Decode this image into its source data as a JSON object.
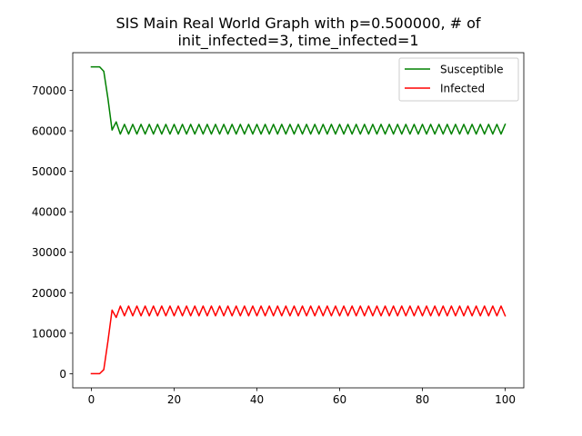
{
  "title_line1": "SIS Main Real World Graph with p=0.500000, # of",
  "title_line2": "init_infected=3, time_infected=1",
  "chart_data": {
    "type": "line",
    "title": "SIS Main Real World Graph with p=0.500000, # of init_infected=3, time_infected=1",
    "xlabel": "",
    "ylabel": "",
    "xlim": [
      -4.5,
      104.5
    ],
    "ylim": [
      -3500,
      79300
    ],
    "xticks": [
      0,
      20,
      40,
      60,
      80,
      100
    ],
    "yticks": [
      0,
      10000,
      20000,
      30000,
      40000,
      50000,
      60000,
      70000
    ],
    "legend": "top-right",
    "grid": false,
    "series": [
      {
        "name": "Susceptible",
        "color": "#008000",
        "x": [
          0,
          1,
          2,
          3,
          4,
          5,
          6,
          7,
          8,
          9,
          10,
          11,
          12,
          13,
          14,
          15,
          16,
          17,
          18,
          19,
          20,
          21,
          22,
          23,
          24,
          25,
          26,
          27,
          28,
          29,
          30,
          31,
          32,
          33,
          34,
          35,
          36,
          37,
          38,
          39,
          40,
          41,
          42,
          43,
          44,
          45,
          46,
          47,
          48,
          49,
          50,
          51,
          52,
          53,
          54,
          55,
          56,
          57,
          58,
          59,
          60,
          61,
          62,
          63,
          64,
          65,
          66,
          67,
          68,
          69,
          70,
          71,
          72,
          73,
          74,
          75,
          76,
          77,
          78,
          79,
          80,
          81,
          82,
          83,
          84,
          85,
          86,
          87,
          88,
          89,
          90,
          91,
          92,
          93,
          94,
          95,
          96,
          97,
          98,
          99,
          100
        ],
        "values": [
          75800,
          75800,
          75800,
          74700,
          68000,
          60200,
          62200,
          59200,
          61600,
          59200,
          61600,
          59200,
          61600,
          59200,
          61600,
          59200,
          61600,
          59200,
          61600,
          59200,
          61600,
          59200,
          61600,
          59200,
          61600,
          59200,
          61600,
          59200,
          61600,
          59200,
          61600,
          59200,
          61600,
          59200,
          61600,
          59200,
          61600,
          59200,
          61600,
          59200,
          61600,
          59200,
          61600,
          59200,
          61600,
          59200,
          61600,
          59200,
          61600,
          59200,
          61600,
          59200,
          61600,
          59200,
          61600,
          59200,
          61600,
          59200,
          61600,
          59200,
          61600,
          59200,
          61600,
          59200,
          61600,
          59200,
          61600,
          59200,
          61600,
          59200,
          61600,
          59200,
          61600,
          59200,
          61600,
          59200,
          61600,
          59200,
          61600,
          59200,
          61600,
          59200,
          61600,
          59200,
          61600,
          59200,
          61600,
          59200,
          61600,
          59200,
          61600,
          59200,
          61600,
          59200,
          61600,
          59200,
          61600,
          59200,
          61600,
          59200,
          61600
        ]
      },
      {
        "name": "Infected",
        "color": "#ff0000",
        "x": [
          0,
          1,
          2,
          3,
          4,
          5,
          6,
          7,
          8,
          9,
          10,
          11,
          12,
          13,
          14,
          15,
          16,
          17,
          18,
          19,
          20,
          21,
          22,
          23,
          24,
          25,
          26,
          27,
          28,
          29,
          30,
          31,
          32,
          33,
          34,
          35,
          36,
          37,
          38,
          39,
          40,
          41,
          42,
          43,
          44,
          45,
          46,
          47,
          48,
          49,
          50,
          51,
          52,
          53,
          54,
          55,
          56,
          57,
          58,
          59,
          60,
          61,
          62,
          63,
          64,
          65,
          66,
          67,
          68,
          69,
          70,
          71,
          72,
          73,
          74,
          75,
          76,
          77,
          78,
          79,
          80,
          81,
          82,
          83,
          84,
          85,
          86,
          87,
          88,
          89,
          90,
          91,
          92,
          93,
          94,
          95,
          96,
          97,
          98,
          99,
          100
        ],
        "values": [
          0,
          0,
          0,
          1000,
          8000,
          15700,
          13900,
          16700,
          14300,
          16700,
          14300,
          16700,
          14300,
          16700,
          14300,
          16700,
          14300,
          16700,
          14300,
          16700,
          14300,
          16700,
          14300,
          16700,
          14300,
          16700,
          14300,
          16700,
          14300,
          16700,
          14300,
          16700,
          14300,
          16700,
          14300,
          16700,
          14300,
          16700,
          14300,
          16700,
          14300,
          16700,
          14300,
          16700,
          14300,
          16700,
          14300,
          16700,
          14300,
          16700,
          14300,
          16700,
          14300,
          16700,
          14300,
          16700,
          14300,
          16700,
          14300,
          16700,
          14300,
          16700,
          14300,
          16700,
          14300,
          16700,
          14300,
          16700,
          14300,
          16700,
          14300,
          16700,
          14300,
          16700,
          14300,
          16700,
          14300,
          16700,
          14300,
          16700,
          14300,
          16700,
          14300,
          16700,
          14300,
          16700,
          14300,
          16700,
          14300,
          16700,
          14300,
          16700,
          14300,
          16700,
          14300,
          16700,
          14300,
          16700,
          14300,
          16700,
          14300
        ]
      }
    ]
  }
}
